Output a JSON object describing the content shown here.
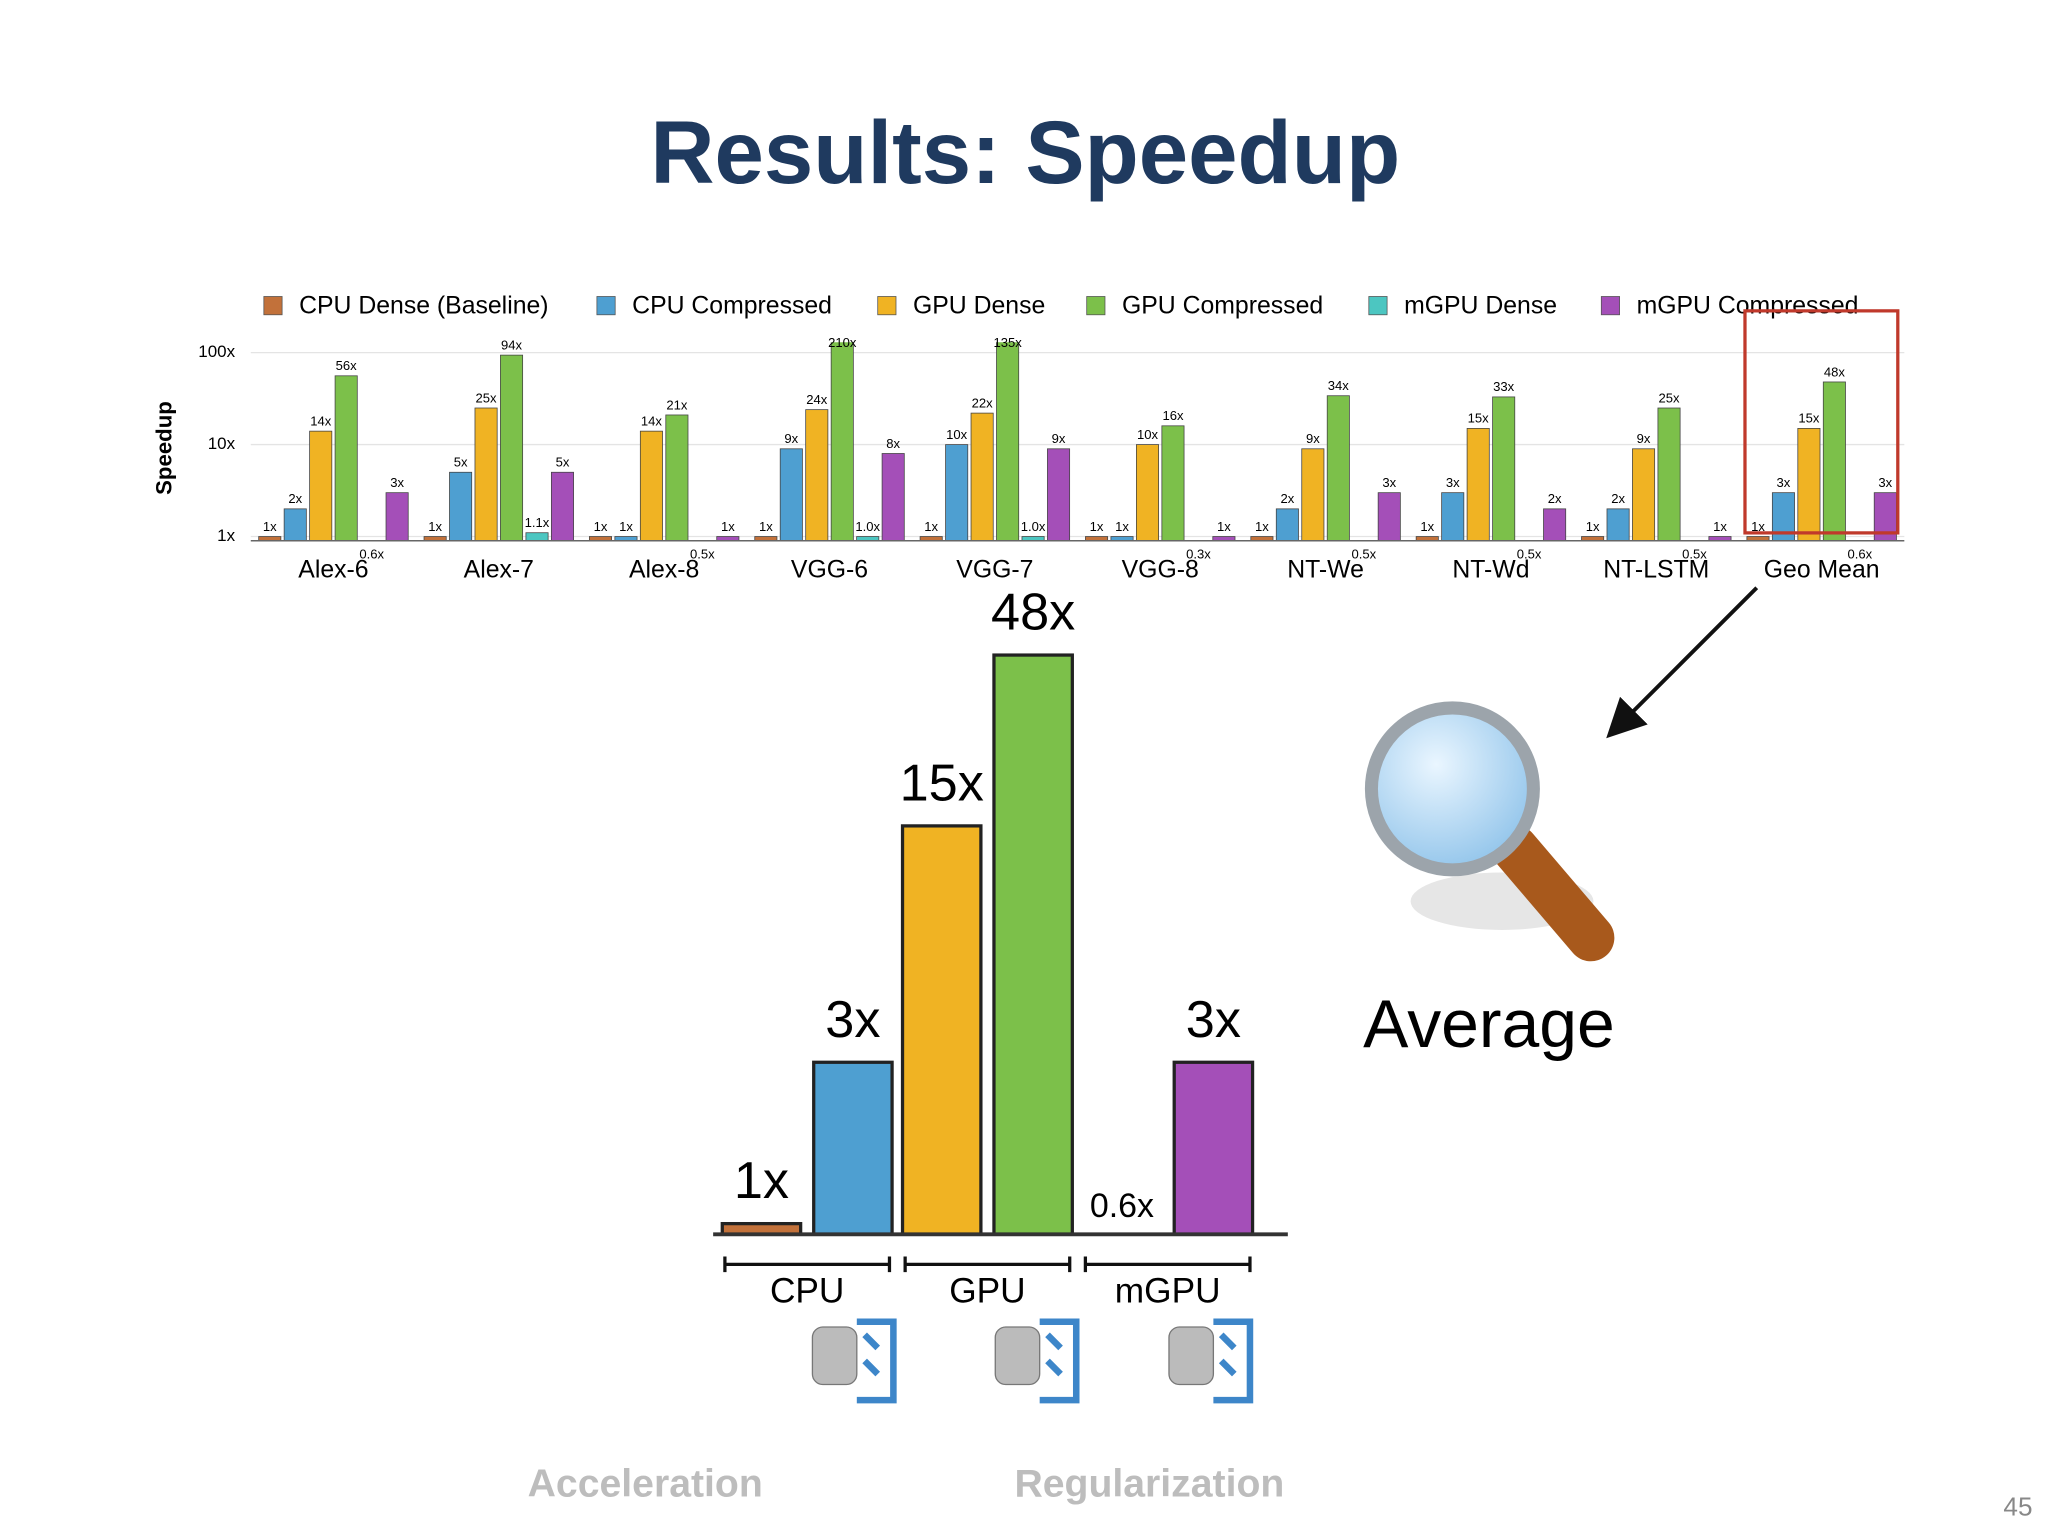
{
  "title": "Results: Speedup",
  "chart_data": [
    {
      "type": "bar",
      "log_y": true,
      "grid": true,
      "legend": "top",
      "y_label": "Speedup",
      "categories": [
        "Alex-6",
        "Alex-7",
        "Alex-8",
        "VGG-6",
        "VGG-7",
        "VGG-8",
        "NT-We",
        "NT-Wd",
        "NT-LSTM",
        "Geo Mean"
      ],
      "ylim": [
        0.9,
        100
      ],
      "yticks": [
        {
          "value": 1,
          "label": "1x"
        },
        {
          "value": 10,
          "label": "10x"
        },
        {
          "value": 100,
          "label": "100x"
        }
      ],
      "series": [
        {
          "name": "CPU Dense (Baseline)",
          "color": "#c2713a",
          "values": [
            1,
            1,
            1,
            1,
            1,
            1,
            1,
            1,
            1,
            1
          ],
          "value_labels": [
            "1x",
            "1x",
            "1x",
            "1x",
            "1x",
            "1x",
            "1x",
            "1x",
            "1x",
            "1x"
          ]
        },
        {
          "name": "CPU Compressed",
          "color": "#4e9fd1",
          "values": [
            2,
            5,
            1,
            9,
            10,
            1,
            2,
            3,
            2,
            3
          ],
          "value_labels": [
            "2x",
            "5x",
            "1x",
            "9x",
            "10x",
            "1x",
            "2x",
            "3x",
            "2x",
            "3x"
          ]
        },
        {
          "name": "GPU Dense",
          "color": "#f0b323",
          "values": [
            14,
            25,
            14,
            24,
            22,
            10,
            9,
            15,
            9,
            15
          ],
          "value_labels": [
            "14x",
            "25x",
            "14x",
            "24x",
            "22x",
            "10x",
            "9x",
            "15x",
            "9x",
            "15x"
          ]
        },
        {
          "name": "GPU Compressed",
          "color": "#7cc04a",
          "values": [
            56,
            94,
            21,
            210,
            135,
            16,
            34,
            33,
            25,
            48
          ],
          "value_labels": [
            "56x",
            "94x",
            "21x",
            "210x",
            "135x",
            "16x",
            "34x",
            "33x",
            "25x",
            "48x"
          ]
        },
        {
          "name": "mGPU Dense",
          "color": "#4cc6c1",
          "values": [
            0.6,
            1.1,
            0.5,
            1.0,
            1.0,
            0.3,
            0.5,
            0.5,
            0.5,
            0.6
          ],
          "value_labels": [
            "0.6x",
            "1.1x",
            "0.5x",
            "1.0x",
            "1.0x",
            "0.3x",
            "0.5x",
            "0.5x",
            "0.5x",
            "0.6x"
          ]
        },
        {
          "name": "mGPU Compressed",
          "color": "#a44fb8",
          "values": [
            3,
            5,
            1,
            8,
            9,
            1,
            3,
            2,
            1,
            3
          ],
          "value_labels": [
            "3x",
            "5x",
            "1x",
            "8x",
            "9x",
            "1x",
            "3x",
            "2x",
            "1x",
            "3x"
          ]
        }
      ]
    },
    {
      "type": "bar",
      "log_y": true,
      "ylim": [
        0.93,
        100
      ],
      "categories": [
        "CPU",
        "GPU",
        "mGPU"
      ],
      "values": [
        [
          1,
          3
        ],
        [
          15,
          48
        ],
        [
          0.6,
          3
        ]
      ],
      "value_labels": [
        [
          "1x",
          "3x"
        ],
        [
          "15x",
          "48x"
        ],
        [
          "0.6x",
          "3x"
        ]
      ],
      "colors": [
        [
          "#c2713a",
          "#4e9fd1"
        ],
        [
          "#f0b323",
          "#7cc04a"
        ],
        [
          "#4cc6c1",
          "#a44fb8"
        ]
      ]
    }
  ],
  "annotation": "Average",
  "footer": [
    "Acceleration",
    "Regularization"
  ],
  "page_number": "45"
}
